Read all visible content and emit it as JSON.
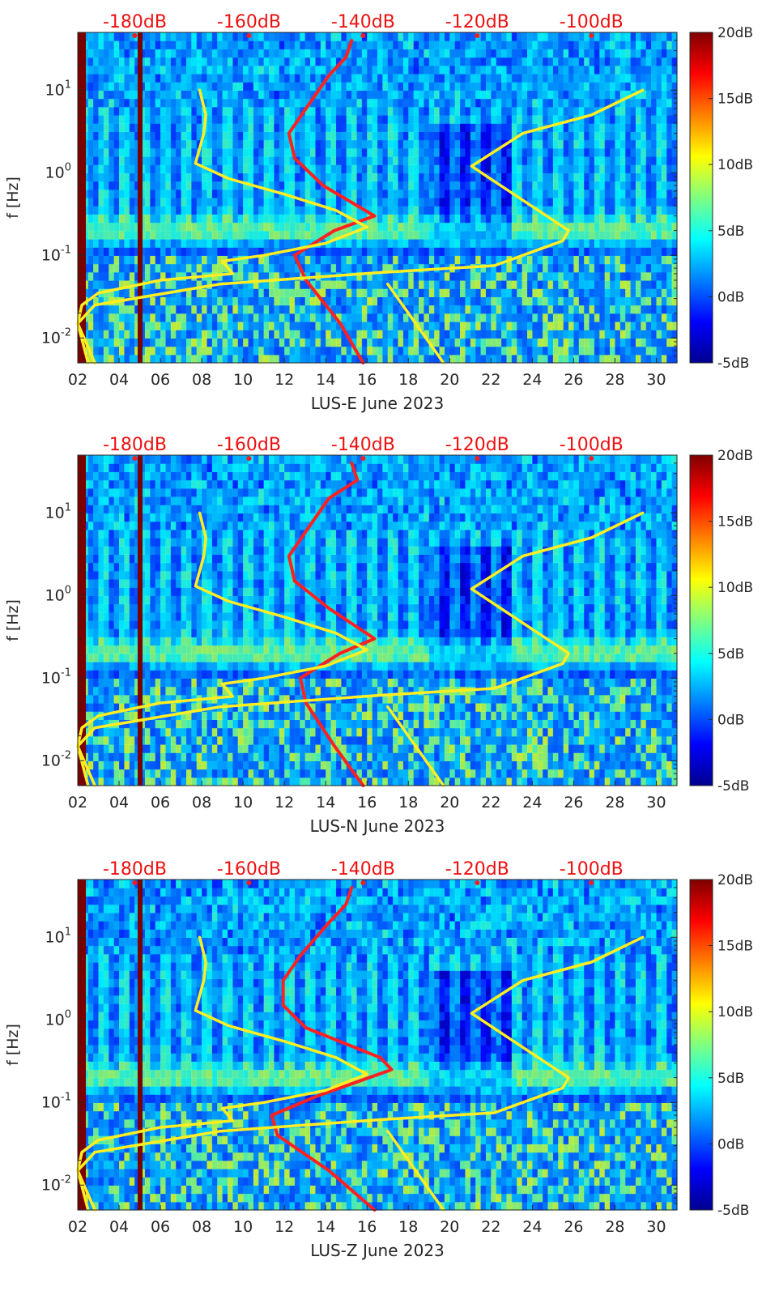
{
  "chart_data": [
    {
      "type": "heatmap",
      "station_label": "LUS-E June 2023",
      "ylabel": "f [Hz]",
      "x": {
        "range": [
          2,
          31
        ],
        "ticks": [
          "02",
          "04",
          "06",
          "08",
          "10",
          "12",
          "14",
          "16",
          "18",
          "20",
          "22",
          "24",
          "26",
          "28",
          "30"
        ],
        "tick_values": [
          2,
          4,
          6,
          8,
          10,
          12,
          14,
          16,
          18,
          20,
          22,
          24,
          26,
          28,
          30
        ]
      },
      "y": {
        "scale": "log",
        "range": [
          0.005,
          50
        ],
        "ticks": [
          "10-2",
          "10-1",
          "100",
          "101"
        ],
        "tick_values": [
          0.01,
          0.1,
          1,
          10
        ]
      },
      "top_axis": {
        "ticks": [
          "-180dB",
          "-160dB",
          "-140dB",
          "-120dB",
          "-100dB"
        ],
        "tick_values": [
          -180,
          -160,
          -140,
          -120,
          -100
        ],
        "range": [
          -190,
          -85
        ]
      },
      "colorbar": {
        "ticks": [
          "20dB",
          "15dB",
          "10dB",
          "5dB",
          "0dB",
          "-5dB"
        ],
        "tick_values": [
          20,
          15,
          10,
          5,
          0,
          -5
        ],
        "range": [
          -5,
          20
        ]
      },
      "curves": [
        {
          "name": "model-high-noise",
          "color": "#ff2020",
          "units": "dB",
          "points": [
            [
              -140,
              0.005
            ],
            [
              -144,
              0.015
            ],
            [
              -150,
              0.05
            ],
            [
              -152,
              0.1
            ],
            [
              -145,
              0.2
            ],
            [
              -138,
              0.3
            ],
            [
              -147,
              0.7
            ],
            [
              -152,
              1.5
            ],
            [
              -153,
              3
            ],
            [
              -150,
              6
            ],
            [
              -146,
              15
            ],
            [
              -143,
              25
            ],
            [
              -142,
              40
            ]
          ]
        },
        {
          "name": "model-low-noise",
          "color": "#ffee22",
          "units": "dB",
          "points": [
            [
              -187,
              0.005
            ],
            [
              -190,
              0.015
            ],
            [
              -187,
              0.025
            ],
            [
              -165,
              0.045
            ],
            [
              -137,
              0.062
            ],
            [
              -117,
              0.075
            ],
            [
              -105,
              0.15
            ],
            [
              -104,
              0.2
            ],
            [
              -121,
              1.2
            ],
            [
              -112,
              3
            ],
            [
              -100,
              5
            ],
            [
              -91,
              10
            ]
          ]
        },
        {
          "name": "annotation-curve",
          "color": "#ffee22",
          "units": "days",
          "points": [
            [
              7.9,
              10
            ],
            [
              8.2,
              5
            ],
            [
              8.1,
              3
            ],
            [
              7.7,
              1.3
            ],
            [
              9.3,
              0.85
            ],
            [
              12,
              0.55
            ],
            [
              14.5,
              0.35
            ],
            [
              16,
              0.22
            ],
            [
              14,
              0.14
            ],
            [
              11,
              0.1
            ],
            [
              9,
              0.085
            ],
            [
              9.5,
              0.06
            ],
            [
              6,
              0.05
            ],
            [
              3,
              0.035
            ],
            [
              2.2,
              0.025
            ],
            [
              2,
              0.015
            ],
            [
              2.5,
              0.005
            ]
          ]
        },
        {
          "name": "annotation-curve-2",
          "color": "#ffee22",
          "units": "days",
          "points": [
            [
              17,
              0.045
            ],
            [
              19.7,
              0.005
            ]
          ]
        }
      ]
    },
    {
      "type": "heatmap",
      "station_label": "LUS-N June 2023",
      "ylabel": "f [Hz]",
      "x": {
        "range": [
          2,
          31
        ],
        "ticks": [
          "02",
          "04",
          "06",
          "08",
          "10",
          "12",
          "14",
          "16",
          "18",
          "20",
          "22",
          "24",
          "26",
          "28",
          "30"
        ],
        "tick_values": [
          2,
          4,
          6,
          8,
          10,
          12,
          14,
          16,
          18,
          20,
          22,
          24,
          26,
          28,
          30
        ]
      },
      "y": {
        "scale": "log",
        "range": [
          0.005,
          50
        ],
        "ticks": [
          "10-2",
          "10-1",
          "100",
          "101"
        ],
        "tick_values": [
          0.01,
          0.1,
          1,
          10
        ]
      },
      "top_axis": {
        "ticks": [
          "-180dB",
          "-160dB",
          "-140dB",
          "-120dB",
          "-100dB"
        ],
        "tick_values": [
          -180,
          -160,
          -140,
          -120,
          -100
        ],
        "range": [
          -190,
          -85
        ]
      },
      "colorbar": {
        "ticks": [
          "20dB",
          "15dB",
          "10dB",
          "5dB",
          "0dB",
          "-5dB"
        ],
        "tick_values": [
          20,
          15,
          10,
          5,
          0,
          -5
        ],
        "range": [
          -5,
          20
        ]
      },
      "curves": [
        {
          "name": "model-high-noise",
          "color": "#ff2020",
          "units": "dB",
          "points": [
            [
              -140,
              0.005
            ],
            [
              -145,
              0.015
            ],
            [
              -150,
              0.05
            ],
            [
              -151,
              0.1
            ],
            [
              -144,
              0.2
            ],
            [
              -138,
              0.3
            ],
            [
              -146,
              0.7
            ],
            [
              -152,
              1.5
            ],
            [
              -153,
              3
            ],
            [
              -150,
              6
            ],
            [
              -146,
              15
            ],
            [
              -141,
              25
            ],
            [
              -142,
              40
            ]
          ]
        },
        {
          "name": "model-low-noise",
          "color": "#ffee22",
          "units": "dB",
          "points": [
            [
              -187,
              0.005
            ],
            [
              -190,
              0.015
            ],
            [
              -187,
              0.025
            ],
            [
              -165,
              0.045
            ],
            [
              -137,
              0.062
            ],
            [
              -117,
              0.075
            ],
            [
              -105,
              0.15
            ],
            [
              -104,
              0.2
            ],
            [
              -121,
              1.2
            ],
            [
              -112,
              3
            ],
            [
              -100,
              5
            ],
            [
              -91,
              10
            ]
          ]
        },
        {
          "name": "annotation-curve",
          "color": "#ffee22",
          "units": "days",
          "points": [
            [
              7.9,
              10
            ],
            [
              8.2,
              5
            ],
            [
              8.1,
              3
            ],
            [
              7.7,
              1.3
            ],
            [
              9.3,
              0.85
            ],
            [
              12,
              0.55
            ],
            [
              14.5,
              0.35
            ],
            [
              16,
              0.22
            ],
            [
              14,
              0.14
            ],
            [
              11,
              0.1
            ],
            [
              9,
              0.085
            ],
            [
              9.5,
              0.06
            ],
            [
              6,
              0.05
            ],
            [
              3,
              0.035
            ],
            [
              2.2,
              0.025
            ],
            [
              2,
              0.015
            ],
            [
              2.5,
              0.005
            ]
          ]
        },
        {
          "name": "annotation-curve-2",
          "color": "#ffee22",
          "units": "days",
          "points": [
            [
              17,
              0.045
            ],
            [
              19.7,
              0.005
            ]
          ]
        }
      ]
    },
    {
      "type": "heatmap",
      "station_label": "LUS-Z June 2023",
      "ylabel": "f [Hz]",
      "x": {
        "range": [
          2,
          31
        ],
        "ticks": [
          "02",
          "04",
          "06",
          "08",
          "10",
          "12",
          "14",
          "16",
          "18",
          "20",
          "22",
          "24",
          "26",
          "28",
          "30"
        ],
        "tick_values": [
          2,
          4,
          6,
          8,
          10,
          12,
          14,
          16,
          18,
          20,
          22,
          24,
          26,
          28,
          30
        ]
      },
      "y": {
        "scale": "log",
        "range": [
          0.005,
          50
        ],
        "ticks": [
          "10-2",
          "10-1",
          "100",
          "101"
        ],
        "tick_values": [
          0.01,
          0.1,
          1,
          10
        ]
      },
      "top_axis": {
        "ticks": [
          "-180dB",
          "-160dB",
          "-140dB",
          "-120dB",
          "-100dB"
        ],
        "tick_values": [
          -180,
          -160,
          -140,
          -120,
          -100
        ],
        "range": [
          -190,
          -85
        ]
      },
      "colorbar": {
        "ticks": [
          "20dB",
          "15dB",
          "10dB",
          "5dB",
          "0dB",
          "-5dB"
        ],
        "tick_values": [
          20,
          15,
          10,
          5,
          0,
          -5
        ],
        "range": [
          -5,
          20
        ]
      },
      "curves": [
        {
          "name": "model-high-noise",
          "color": "#ff2020",
          "units": "dB",
          "points": [
            [
              -138,
              0.005
            ],
            [
              -146,
              0.015
            ],
            [
              -155,
              0.04
            ],
            [
              -156,
              0.07
            ],
            [
              -148,
              0.12
            ],
            [
              -135,
              0.25
            ],
            [
              -137,
              0.35
            ],
            [
              -150,
              0.8
            ],
            [
              -154,
              1.5
            ],
            [
              -154,
              3
            ],
            [
              -151,
              6
            ],
            [
              -146,
              15
            ],
            [
              -143,
              25
            ],
            [
              -142,
              40
            ]
          ]
        },
        {
          "name": "model-low-noise",
          "color": "#ffee22",
          "units": "dB",
          "points": [
            [
              -187,
              0.005
            ],
            [
              -190,
              0.015
            ],
            [
              -187,
              0.025
            ],
            [
              -165,
              0.045
            ],
            [
              -137,
              0.062
            ],
            [
              -117,
              0.075
            ],
            [
              -105,
              0.15
            ],
            [
              -104,
              0.2
            ],
            [
              -121,
              1.2
            ],
            [
              -112,
              3
            ],
            [
              -100,
              5
            ],
            [
              -91,
              10
            ]
          ]
        },
        {
          "name": "annotation-curve",
          "color": "#ffee22",
          "units": "days",
          "points": [
            [
              7.9,
              10
            ],
            [
              8.2,
              5
            ],
            [
              8.1,
              3
            ],
            [
              7.7,
              1.3
            ],
            [
              9.3,
              0.85
            ],
            [
              12,
              0.55
            ],
            [
              14.5,
              0.35
            ],
            [
              16,
              0.22
            ],
            [
              14,
              0.14
            ],
            [
              11,
              0.1
            ],
            [
              9,
              0.085
            ],
            [
              9.5,
              0.06
            ],
            [
              6,
              0.05
            ],
            [
              3,
              0.035
            ],
            [
              2.2,
              0.025
            ],
            [
              2,
              0.015
            ],
            [
              2.5,
              0.005
            ]
          ]
        },
        {
          "name": "annotation-curve-2",
          "color": "#ffee22",
          "units": "days",
          "points": [
            [
              17,
              0.045
            ],
            [
              19.7,
              0.005
            ]
          ]
        }
      ]
    }
  ]
}
